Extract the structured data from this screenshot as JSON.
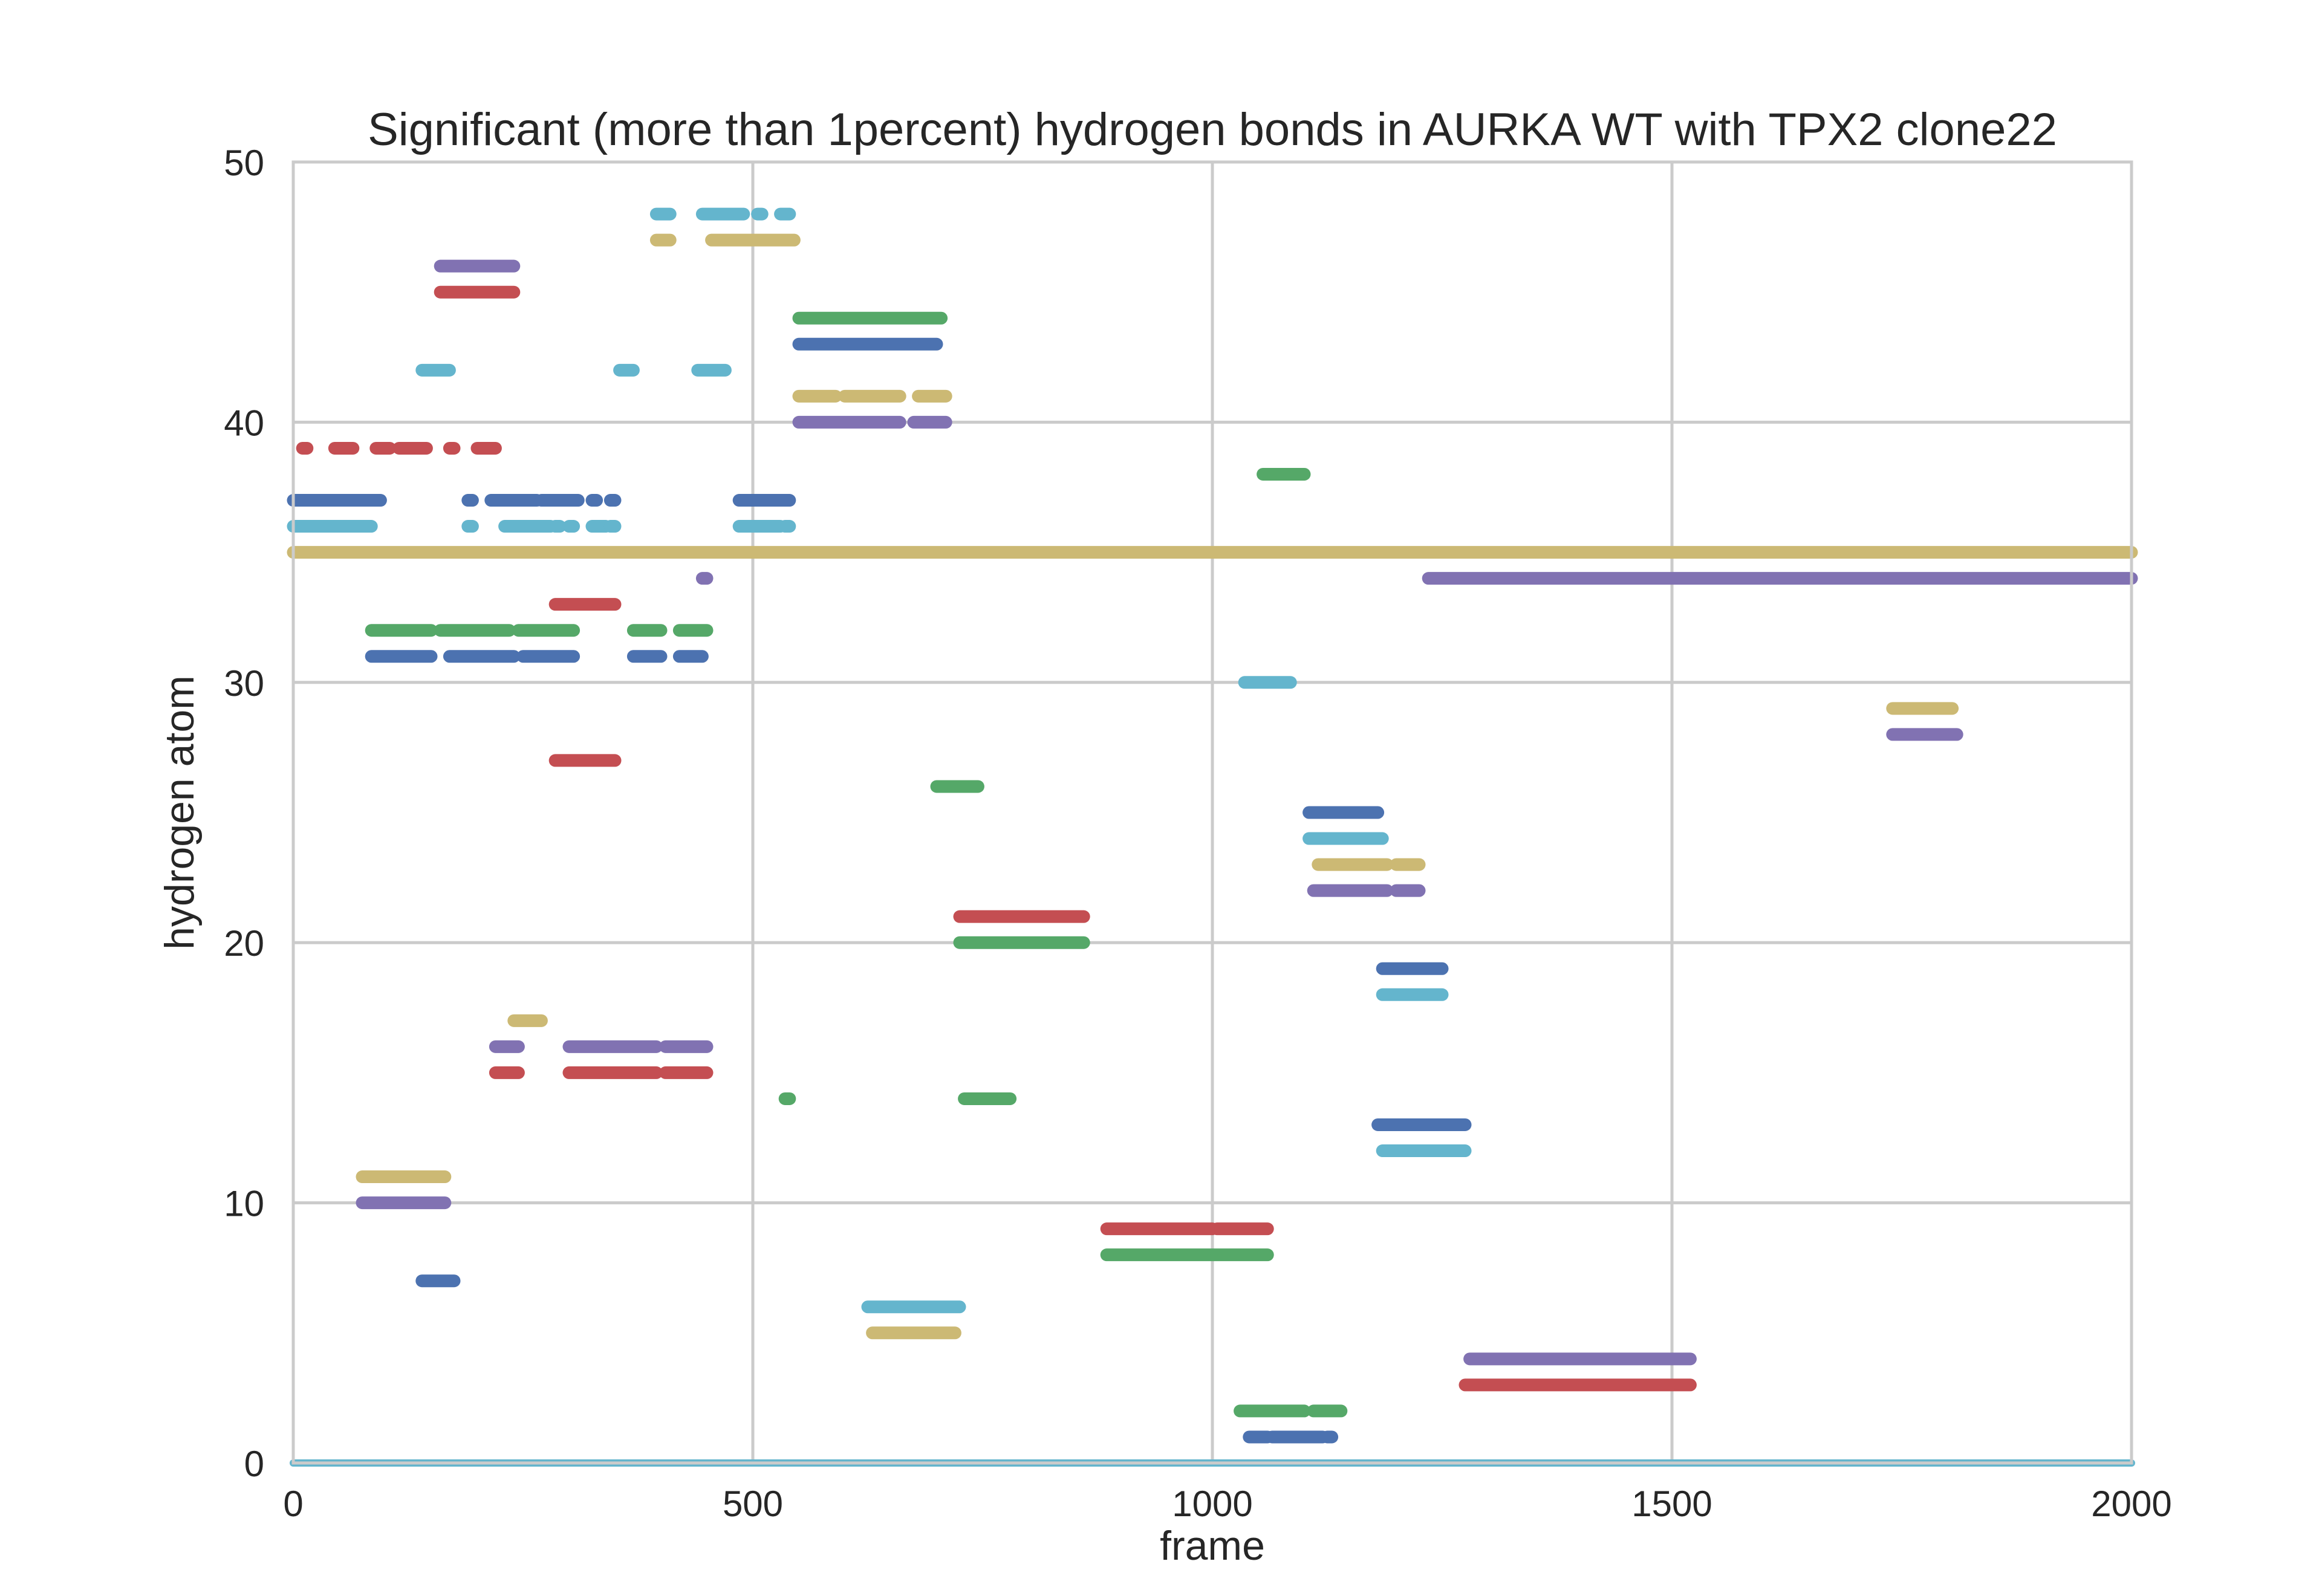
{
  "chart_data": {
    "type": "scatter",
    "title": "Significant (more than 1percent) hydrogen bonds in AURKA WT with TPX2 clone22",
    "xlabel": "frame",
    "ylabel": "hydrogen atom",
    "xlim": [
      0,
      2000
    ],
    "ylim": [
      0,
      50
    ],
    "xticks": [
      "0",
      "500",
      "1000",
      "1500",
      "2000"
    ],
    "yticks": [
      "0",
      "10",
      "20",
      "30",
      "40",
      "50"
    ],
    "grid": true,
    "legend": "none",
    "colors": {
      "blue": "#4c72b0",
      "green": "#55a868",
      "red": "#c44e52",
      "purple": "#8172b2",
      "yellow": "#ccb974",
      "cyan": "#64b5cd"
    },
    "series": [
      {
        "y": 0,
        "color": "cyan",
        "segments": [
          [
            0,
            2000
          ]
        ]
      },
      {
        "y": 1,
        "color": "blue",
        "segments": [
          [
            1040,
            1060
          ],
          [
            1065,
            1120
          ],
          [
            1125,
            1130
          ]
        ]
      },
      {
        "y": 2,
        "color": "green",
        "segments": [
          [
            1030,
            1100
          ],
          [
            1110,
            1140
          ]
        ]
      },
      {
        "y": 3,
        "color": "red",
        "segments": [
          [
            1275,
            1520
          ]
        ]
      },
      {
        "y": 4,
        "color": "purple",
        "segments": [
          [
            1280,
            1520
          ]
        ]
      },
      {
        "y": 5,
        "color": "yellow",
        "segments": [
          [
            630,
            720
          ]
        ]
      },
      {
        "y": 6,
        "color": "cyan",
        "segments": [
          [
            625,
            725
          ]
        ]
      },
      {
        "y": 7,
        "color": "blue",
        "segments": [
          [
            140,
            175
          ]
        ]
      },
      {
        "y": 8,
        "color": "green",
        "segments": [
          [
            885,
            1060
          ]
        ]
      },
      {
        "y": 9,
        "color": "red",
        "segments": [
          [
            885,
            1000
          ],
          [
            1005,
            1060
          ]
        ]
      },
      {
        "y": 10,
        "color": "purple",
        "segments": [
          [
            75,
            165
          ]
        ]
      },
      {
        "y": 11,
        "color": "yellow",
        "segments": [
          [
            75,
            165
          ]
        ]
      },
      {
        "y": 12,
        "color": "cyan",
        "segments": [
          [
            1185,
            1275
          ]
        ]
      },
      {
        "y": 13,
        "color": "blue",
        "segments": [
          [
            1180,
            1275
          ]
        ]
      },
      {
        "y": 14,
        "color": "green",
        "segments": [
          [
            535,
            540
          ],
          [
            730,
            780
          ]
        ]
      },
      {
        "y": 15,
        "color": "red",
        "segments": [
          [
            220,
            245
          ],
          [
            300,
            395
          ],
          [
            405,
            450
          ]
        ]
      },
      {
        "y": 16,
        "color": "purple",
        "segments": [
          [
            220,
            245
          ],
          [
            300,
            395
          ],
          [
            405,
            450
          ]
        ]
      },
      {
        "y": 17,
        "color": "yellow",
        "segments": [
          [
            240,
            270
          ]
        ]
      },
      {
        "y": 18,
        "color": "cyan",
        "segments": [
          [
            1185,
            1250
          ]
        ]
      },
      {
        "y": 19,
        "color": "blue",
        "segments": [
          [
            1185,
            1250
          ]
        ]
      },
      {
        "y": 20,
        "color": "green",
        "segments": [
          [
            725,
            860
          ]
        ]
      },
      {
        "y": 21,
        "color": "red",
        "segments": [
          [
            725,
            860
          ]
        ]
      },
      {
        "y": 22,
        "color": "purple",
        "segments": [
          [
            1110,
            1190
          ],
          [
            1200,
            1225
          ]
        ]
      },
      {
        "y": 23,
        "color": "yellow",
        "segments": [
          [
            1115,
            1190
          ],
          [
            1200,
            1225
          ]
        ]
      },
      {
        "y": 24,
        "color": "cyan",
        "segments": [
          [
            1105,
            1185
          ]
        ]
      },
      {
        "y": 25,
        "color": "blue",
        "segments": [
          [
            1105,
            1180
          ]
        ]
      },
      {
        "y": 26,
        "color": "green",
        "segments": [
          [
            700,
            745
          ]
        ]
      },
      {
        "y": 27,
        "color": "red",
        "segments": [
          [
            285,
            350
          ]
        ]
      },
      {
        "y": 28,
        "color": "purple",
        "segments": [
          [
            1740,
            1810
          ]
        ]
      },
      {
        "y": 29,
        "color": "yellow",
        "segments": [
          [
            1740,
            1805
          ]
        ]
      },
      {
        "y": 30,
        "color": "cyan",
        "segments": [
          [
            1035,
            1085
          ]
        ]
      },
      {
        "y": 31,
        "color": "blue",
        "segments": [
          [
            85,
            150
          ],
          [
            170,
            240
          ],
          [
            250,
            305
          ],
          [
            370,
            400
          ],
          [
            420,
            445
          ]
        ]
      },
      {
        "y": 32,
        "color": "green",
        "segments": [
          [
            85,
            150
          ],
          [
            160,
            235
          ],
          [
            245,
            305
          ],
          [
            370,
            400
          ],
          [
            420,
            450
          ]
        ]
      },
      {
        "y": 33,
        "color": "red",
        "segments": [
          [
            285,
            350
          ]
        ]
      },
      {
        "y": 34,
        "color": "purple",
        "segments": [
          [
            445,
            450
          ],
          [
            1235,
            2000
          ]
        ]
      },
      {
        "y": 35,
        "color": "yellow",
        "segments": [
          [
            0,
            2000
          ]
        ]
      },
      {
        "y": 36,
        "color": "cyan",
        "segments": [
          [
            0,
            85
          ],
          [
            190,
            195
          ],
          [
            230,
            280
          ],
          [
            285,
            290
          ],
          [
            300,
            305
          ],
          [
            325,
            340
          ],
          [
            345,
            350
          ],
          [
            485,
            530
          ],
          [
            535,
            540
          ]
        ]
      },
      {
        "y": 37,
        "color": "blue",
        "segments": [
          [
            0,
            95
          ],
          [
            190,
            195
          ],
          [
            215,
            265
          ],
          [
            270,
            310
          ],
          [
            325,
            330
          ],
          [
            345,
            350
          ],
          [
            485,
            540
          ]
        ]
      },
      {
        "y": 38,
        "color": "green",
        "segments": [
          [
            1055,
            1100
          ]
        ]
      },
      {
        "y": 39,
        "color": "red",
        "segments": [
          [
            10,
            15
          ],
          [
            45,
            65
          ],
          [
            90,
            105
          ],
          [
            115,
            145
          ],
          [
            170,
            175
          ],
          [
            200,
            220
          ]
        ]
      },
      {
        "y": 40,
        "color": "purple",
        "segments": [
          [
            550,
            660
          ],
          [
            675,
            710
          ]
        ]
      },
      {
        "y": 41,
        "color": "yellow",
        "segments": [
          [
            550,
            590
          ],
          [
            600,
            660
          ],
          [
            680,
            710
          ]
        ]
      },
      {
        "y": 42,
        "color": "cyan",
        "segments": [
          [
            140,
            170
          ],
          [
            355,
            370
          ],
          [
            440,
            470
          ]
        ]
      },
      {
        "y": 43,
        "color": "blue",
        "segments": [
          [
            550,
            700
          ]
        ]
      },
      {
        "y": 44,
        "color": "green",
        "segments": [
          [
            550,
            705
          ]
        ]
      },
      {
        "y": 45,
        "color": "red",
        "segments": [
          [
            160,
            240
          ]
        ]
      },
      {
        "y": 46,
        "color": "purple",
        "segments": [
          [
            160,
            240
          ]
        ]
      },
      {
        "y": 47,
        "color": "yellow",
        "segments": [
          [
            395,
            410
          ],
          [
            455,
            545
          ]
        ]
      },
      {
        "y": 48,
        "color": "cyan",
        "segments": [
          [
            395,
            410
          ],
          [
            445,
            490
          ],
          [
            505,
            510
          ],
          [
            530,
            540
          ]
        ]
      }
    ]
  }
}
